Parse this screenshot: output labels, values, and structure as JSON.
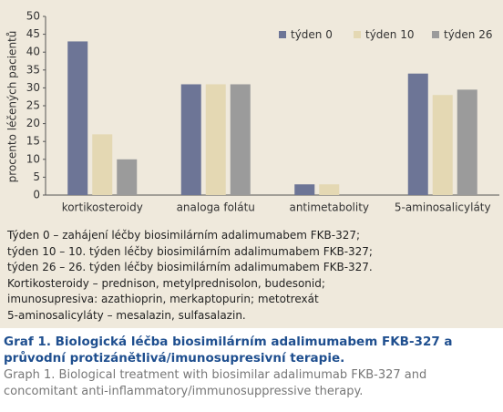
{
  "chart_data": {
    "type": "bar",
    "y_label": "procento léčených pacientů",
    "categories": [
      "kortikosteroidy",
      "analoga folátu",
      "antimetabolity",
      "5-aminosalicyláty"
    ],
    "series": [
      {
        "name": "týden 0",
        "color": "#6d7596",
        "values": [
          43,
          31,
          3,
          34
        ]
      },
      {
        "name": "týden 10",
        "color": "#e4d8b3",
        "values": [
          17,
          31,
          3,
          28
        ]
      },
      {
        "name": "týden 26",
        "color": "#9b9b9b",
        "values": [
          10,
          31,
          0,
          29.5
        ]
      }
    ],
    "ylim": [
      0,
      50
    ],
    "yticks": [
      0,
      5,
      10,
      15,
      20,
      25,
      30,
      35,
      40,
      45,
      50
    ],
    "grid": false
  },
  "notes": [
    "Týden 0 – zahájení léčby biosimilárním adalimumabem FKB-327;",
    "týden 10 – 10. týden léčby biosimilárním adalimumabem FKB-327;",
    "týden 26 – 26. týden léčby biosimilárním adalimumabem FKB-327.",
    "Kortikosteroidy – prednison, metylprednisolon, budesonid;",
    "imunosupresiva: azathioprin, merkaptopurin; metotrexát",
    "5-aminosalicyláty – mesalazin, sulfasalazin."
  ],
  "caption": {
    "title": "Graf 1. Biologická léčba biosimilárním adalimumabem FKB-327 a průvodní protizánětlivá/imunosupresivní terapie.",
    "subtitle": "Graph 1. Biological treatment with biosimilar adalimumab FKB-327 and concomitant anti-inflammatory/immunosuppressive therapy."
  }
}
